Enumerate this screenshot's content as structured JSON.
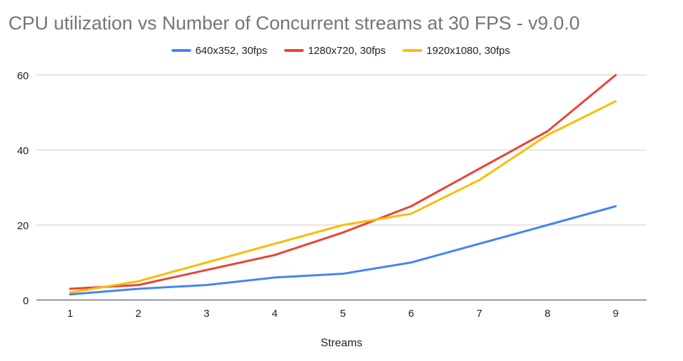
{
  "chart_data": {
    "type": "line",
    "title": "CPU utilization vs Number of Concurrent streams at 30 FPS - v9.0.0",
    "xlabel": "Streams",
    "ylabel": "",
    "x": [
      1,
      2,
      3,
      4,
      5,
      6,
      7,
      8,
      9
    ],
    "ylim": [
      0,
      60
    ],
    "yticks": [
      0,
      20,
      40,
      60
    ],
    "grid": true,
    "legend_position": "top-center",
    "series": [
      {
        "name": "640x352, 30fps",
        "color": "#4285f4",
        "values": [
          1.5,
          3,
          4,
          6,
          7,
          10,
          15,
          20,
          25
        ]
      },
      {
        "name": "1280x720, 30fps",
        "color": "#ea4335",
        "values": [
          3,
          4,
          8,
          12,
          18,
          25,
          35,
          45,
          60
        ]
      },
      {
        "name": "1920x1080, 30fps",
        "color": "#fbbc04",
        "values": [
          2,
          5,
          10,
          15,
          20,
          23,
          32,
          44,
          53
        ]
      }
    ],
    "colors": {
      "title": "#757575",
      "axis_text": "#222222",
      "grid": "#cccccc",
      "axis_line": "#333333"
    }
  }
}
